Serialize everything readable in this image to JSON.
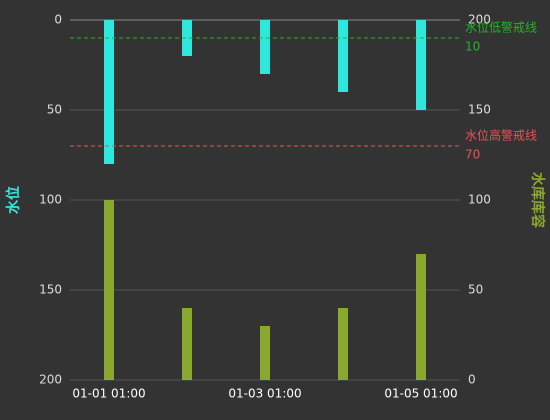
{
  "chart_data": {
    "type": "bar",
    "categories": [
      "01-01 01:00",
      null,
      "01-03 01:00",
      null,
      "01-05 01:00"
    ],
    "ylabel": "水位",
    "y2label": "水库库容",
    "ylim": [
      0,
      200
    ],
    "yticks": [
      0,
      50,
      100,
      150,
      200
    ],
    "yinverse": true,
    "y2lim": [
      0,
      200
    ],
    "y2ticks": [
      0,
      50,
      100,
      150,
      200
    ],
    "grid": true,
    "series": [
      {
        "name": "水位",
        "color": "#2ee8dd",
        "axis": "y",
        "values": [
          80,
          20,
          30,
          40,
          50
        ]
      },
      {
        "name": "水库库容",
        "color": "#8aa82d",
        "axis": "y2",
        "values": [
          100,
          40,
          30,
          40,
          70
        ]
      }
    ],
    "mark_lines": [
      {
        "name": "水位低警戒线",
        "value": 10,
        "color": "#22b526"
      },
      {
        "name": "水位高警戒线",
        "value": 70,
        "color": "#e85454"
      }
    ]
  }
}
